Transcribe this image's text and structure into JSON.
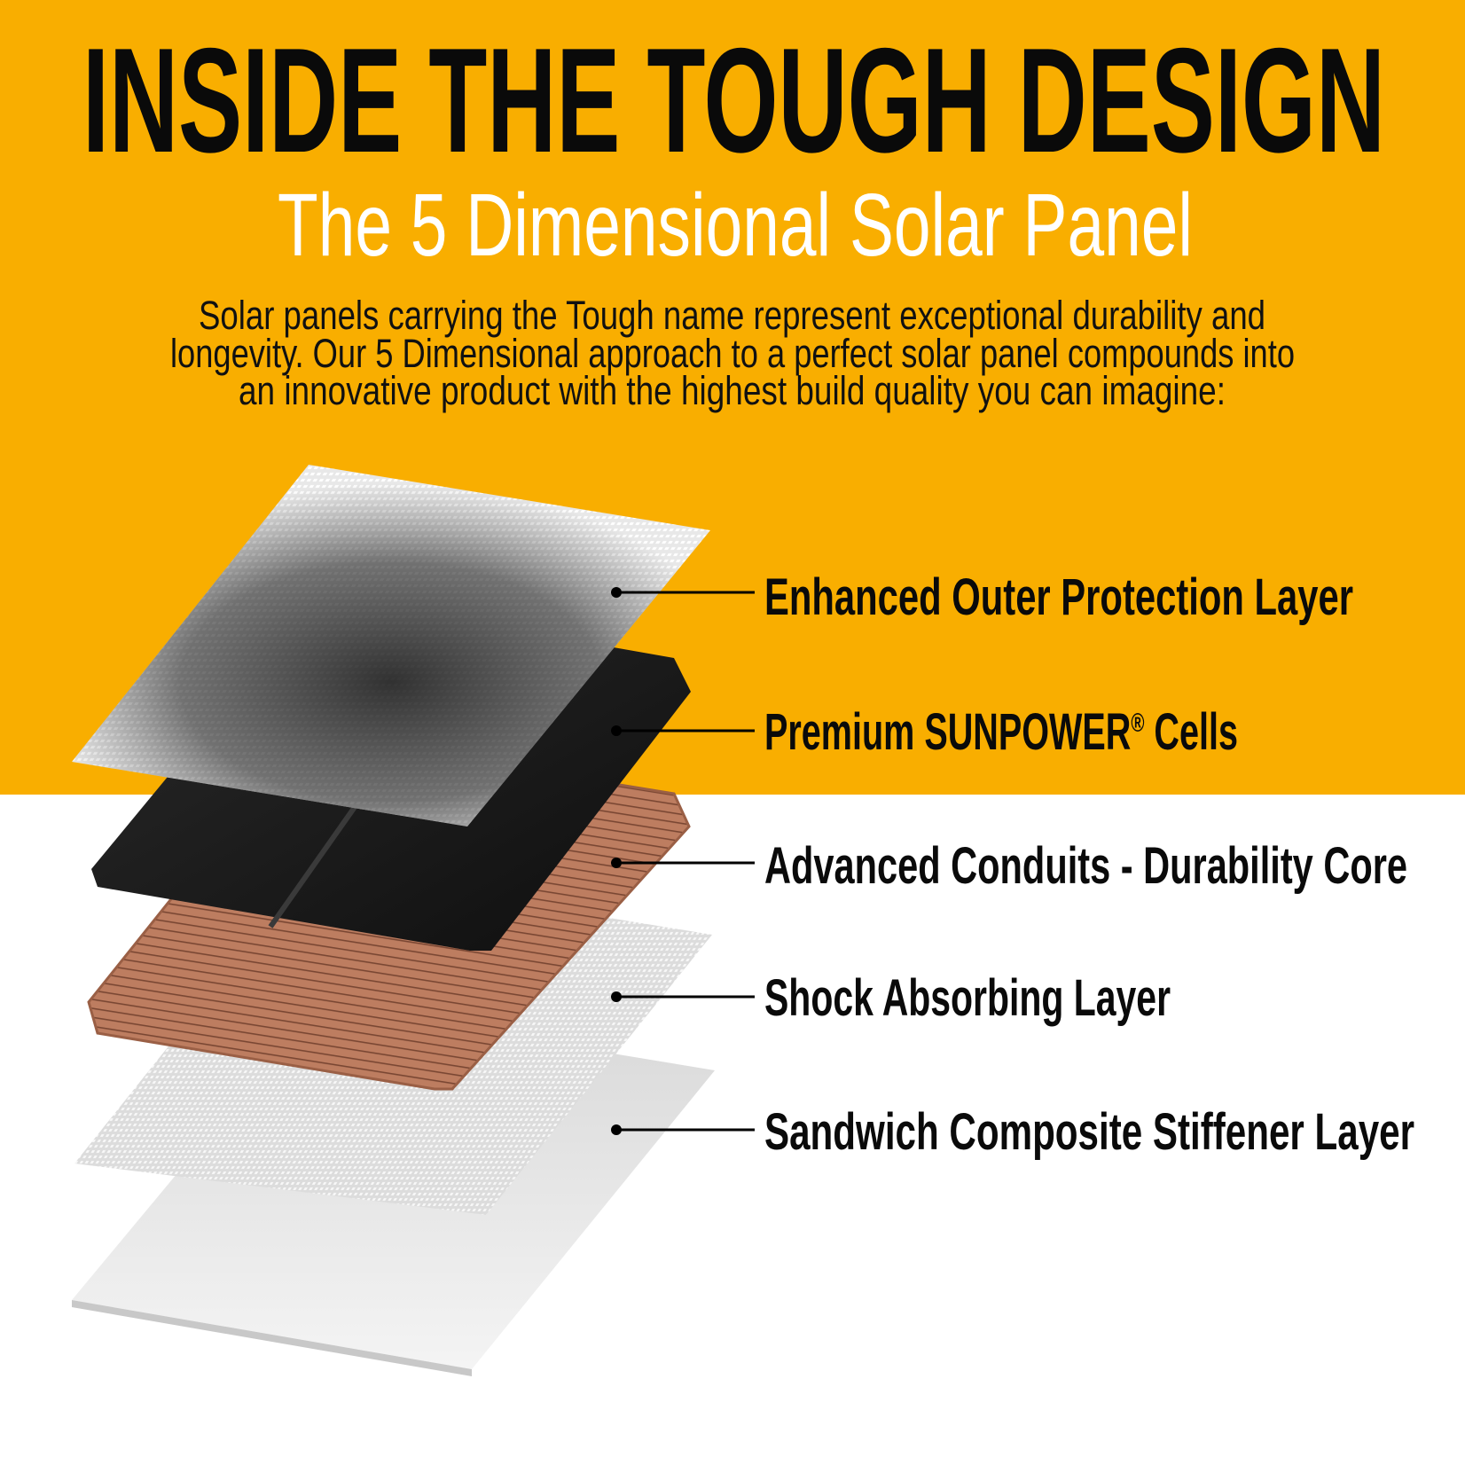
{
  "header": {
    "title": "INSIDE THE TOUGH DESIGN",
    "subtitle": "The 5 Dimensional Solar Panel",
    "body_lines": [
      "Solar panels carrying the Tough name represent exceptional durability and",
      "longevity. Our 5 Dimensional approach to a perfect solar panel compounds into",
      "an innovative product with the highest build quality you can imagine:"
    ]
  },
  "layers": [
    {
      "label": "Enhanced Outer Protection Layer"
    },
    {
      "label": "Premium SUNPOWER",
      "sup": "®",
      "suffix": " Cells"
    },
    {
      "label": "Advanced Conduits - Durability Core"
    },
    {
      "label": "Shock Absorbing Layer"
    },
    {
      "label": "Sandwich Composite Stiffener Layer"
    }
  ],
  "colors": {
    "accent": "#F9AE00",
    "text": "#0A0A0A",
    "subtitle": "#FFFFFF",
    "cells": "#1C1C1C",
    "copper": "#B8765A"
  }
}
